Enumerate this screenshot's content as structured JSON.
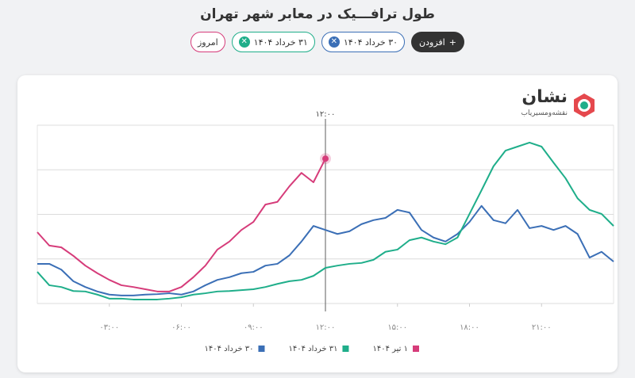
{
  "header": {
    "title": "طول ترافـــیک در معابر شهر تهران",
    "chips": [
      {
        "label": "امروز",
        "color": "#d63c7a"
      },
      {
        "label": "۳۱ خرداد ۱۴۰۴",
        "color": "#1fae8a"
      },
      {
        "label": "۳۰ خرداد ۱۴۰۴",
        "color": "#3b6fb6"
      }
    ],
    "add_button": "افزودن"
  },
  "brand": {
    "name": "نشان",
    "tagline": "نقشه‌و‌مسیریاب"
  },
  "chart_data": {
    "type": "line",
    "x": [
      0,
      0.5,
      1,
      1.5,
      2,
      2.5,
      3,
      3.5,
      4,
      4.5,
      5,
      5.5,
      6,
      6.5,
      7,
      7.5,
      8,
      8.5,
      9,
      9.5,
      10,
      10.5,
      11,
      11.5,
      12,
      12.5,
      13,
      13.5,
      14,
      14.5,
      15,
      15.5,
      16,
      16.5,
      17,
      17.5,
      18,
      18.5,
      19,
      19.5,
      20,
      20.5,
      21,
      21.5,
      22,
      22.5,
      23,
      23.5,
      24
    ],
    "xlim": [
      0,
      24
    ],
    "xticks": [
      {
        "value": 3,
        "label": "۰۳:۰۰"
      },
      {
        "value": 6,
        "label": "۰۶:۰۰"
      },
      {
        "value": 9,
        "label": "۰۹:۰۰"
      },
      {
        "value": 12,
        "label": "۱۲:۰۰"
      },
      {
        "value": 15,
        "label": "۱۵:۰۰"
      },
      {
        "value": 18,
        "label": "۱۸:۰۰"
      },
      {
        "value": 21,
        "label": "۲۱:۰۰"
      }
    ],
    "ylim": [
      0,
      4
    ],
    "yticks": [
      0,
      1,
      2,
      3,
      4
    ],
    "grid": true,
    "cursor": {
      "x": 12,
      "label": "۱۲:۰۰"
    },
    "series": [
      {
        "name": "۱ تیر ۱۴۰۴",
        "color": "#d63c7a",
        "values": [
          1.6,
          1.3,
          1.26,
          1.07,
          0.85,
          0.68,
          0.53,
          0.41,
          0.37,
          0.32,
          0.27,
          0.27,
          0.37,
          0.59,
          0.85,
          1.21,
          1.39,
          1.65,
          1.83,
          2.22,
          2.28,
          2.63,
          2.93,
          2.72,
          3.25,
          null,
          null,
          null,
          null,
          null,
          null,
          null,
          null,
          null,
          null,
          null,
          null,
          null,
          null,
          null,
          null,
          null,
          null,
          null,
          null,
          null,
          null,
          null,
          null
        ]
      },
      {
        "name": "۳۱ خرداد ۱۴۰۴",
        "color": "#1fae8a",
        "values": [
          0.71,
          0.41,
          0.37,
          0.28,
          0.27,
          0.2,
          0.11,
          0.11,
          0.09,
          0.09,
          0.09,
          0.11,
          0.14,
          0.2,
          0.23,
          0.27,
          0.28,
          0.3,
          0.32,
          0.37,
          0.44,
          0.5,
          0.53,
          0.62,
          0.8,
          0.85,
          0.89,
          0.91,
          0.98,
          1.16,
          1.21,
          1.42,
          1.48,
          1.39,
          1.33,
          1.48,
          2.01,
          2.54,
          3.08,
          3.43,
          3.52,
          3.61,
          3.52,
          3.16,
          2.81,
          2.36,
          2.1,
          2.01,
          1.74
        ]
      },
      {
        "name": "۳۰ خرداد ۱۴۰۴",
        "color": "#3b6fb6",
        "values": [
          0.89,
          0.89,
          0.76,
          0.5,
          0.37,
          0.27,
          0.2,
          0.18,
          0.18,
          0.2,
          0.21,
          0.23,
          0.2,
          0.27,
          0.41,
          0.53,
          0.59,
          0.68,
          0.71,
          0.85,
          0.89,
          1.08,
          1.39,
          1.74,
          1.65,
          1.56,
          1.62,
          1.78,
          1.87,
          1.92,
          2.1,
          2.04,
          1.65,
          1.48,
          1.39,
          1.56,
          1.83,
          2.19,
          1.87,
          1.8,
          2.1,
          1.69,
          1.74,
          1.65,
          1.74,
          1.56,
          1.03,
          1.16,
          0.94
        ]
      }
    ]
  }
}
